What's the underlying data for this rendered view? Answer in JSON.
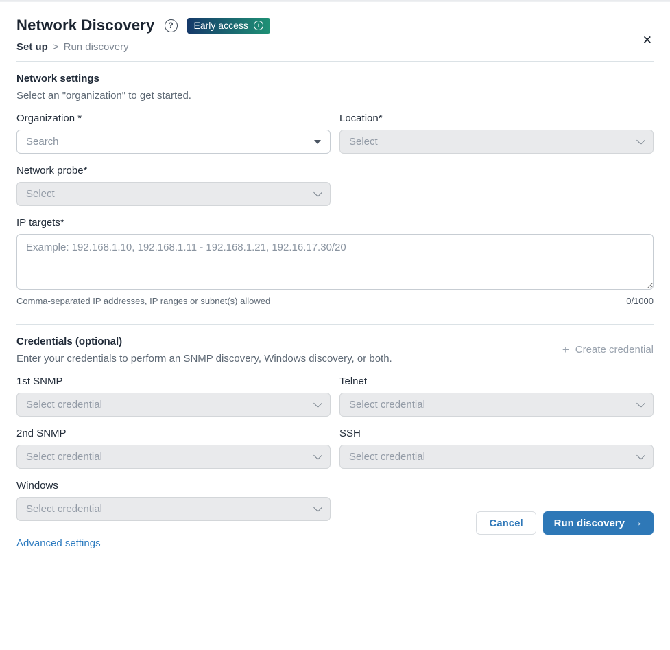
{
  "header": {
    "title": "Network Discovery",
    "help_glyph": "?",
    "badge": {
      "label": "Early access",
      "info_glyph": "i"
    },
    "close_glyph": "✕",
    "breadcrumb": {
      "root": "Set up",
      "separator": ">",
      "current": "Run discovery"
    }
  },
  "network_settings": {
    "title": "Network settings",
    "subtitle": "Select an \"organization\" to get started.",
    "organization": {
      "label": "Organization *",
      "placeholder": "Search"
    },
    "location": {
      "label": "Location*",
      "placeholder": "Select"
    },
    "network_probe": {
      "label": "Network probe*",
      "placeholder": "Select"
    },
    "ip_targets": {
      "label": "IP targets*",
      "placeholder": "Example: 192.168.1.10, 192.168.1.11 - 192.168.1.21, 192.16.17.30/20",
      "value": "",
      "helper": "Comma-separated IP addresses, IP ranges or subnet(s) allowed",
      "counter": "0/1000"
    }
  },
  "credentials": {
    "title": "Credentials (optional)",
    "subtitle": "Enter your credentials to perform an SNMP discovery, Windows discovery, or both.",
    "create_button": {
      "plus_glyph": "+",
      "label": "Create credential"
    },
    "fields": [
      {
        "label": "1st SNMP",
        "placeholder": "Select credential"
      },
      {
        "label": "Telnet",
        "placeholder": "Select credential"
      },
      {
        "label": "2nd SNMP",
        "placeholder": "Select credential"
      },
      {
        "label": "SSH",
        "placeholder": "Select credential"
      },
      {
        "label": "Windows",
        "placeholder": "Select credential"
      }
    ],
    "advanced_link": "Advanced settings"
  },
  "footer": {
    "cancel_label": "Cancel",
    "run_label": "Run discovery",
    "run_arrow": "→"
  },
  "colors": {
    "primary_blue": "#2e78b7",
    "link_blue": "#2e7cc0",
    "badge_gradient_start": "#16396a",
    "badge_gradient_end": "#1e9175",
    "disabled_field_bg": "#e9eaec",
    "field_border": "#c7cdd3",
    "placeholder_text": "#8a94a0",
    "divider": "#dbe2e6"
  }
}
